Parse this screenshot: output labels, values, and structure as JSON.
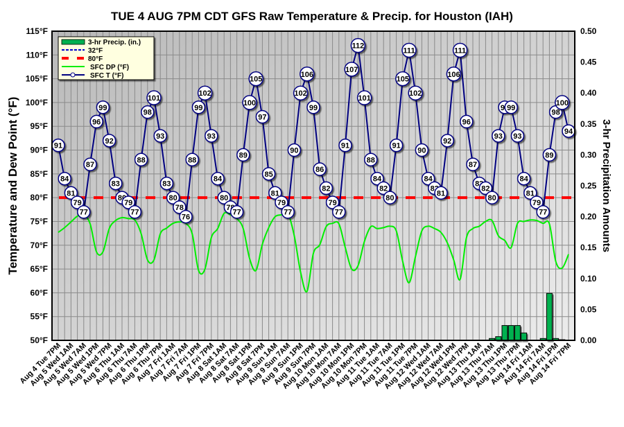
{
  "chart_data": {
    "type": "line",
    "title": "TUE 4 AUG 7PM CDT GFS Raw Temperature & Precip. for Houston (IAH)",
    "ylabel": "Temperature and Dew Point (°F)",
    "y2label": "3-hr Precipitation Amounts",
    "ylim": [
      50,
      115
    ],
    "y2lim": [
      0,
      0.5
    ],
    "yticks": [
      "50°F",
      "55°F",
      "60°F",
      "65°F",
      "70°F",
      "75°F",
      "80°F",
      "85°F",
      "90°F",
      "95°F",
      "100°F",
      "105°F",
      "110°F",
      "115°F"
    ],
    "y2ticks": [
      "0.00",
      "0.05",
      "0.10",
      "0.15",
      "0.20",
      "0.25",
      "0.30",
      "0.35",
      "0.40",
      "0.45",
      "0.50"
    ],
    "grid": true,
    "legend_position": "top-left",
    "legend": [
      "3-hr Precip. (in.)",
      "32°F",
      "80°F",
      "SFC DP (°F)",
      "SFC T (°F)"
    ],
    "x_step_hours": 3,
    "x_labels": [
      "Aug 4 Tue 7PM",
      "Aug 5 Wed 1AM",
      "Aug 5 Wed 7AM",
      "Aug 5 Wed 1PM",
      "Aug 5 Wed 7PM",
      "Aug 6 Thu 1AM",
      "Aug 6 Thu 7AM",
      "Aug 6 Thu 1PM",
      "Aug 6 Thu 7PM",
      "Aug 7 Fri 1AM",
      "Aug 7 Fri 7AM",
      "Aug 7 Fri 1PM",
      "Aug 7 Fri 7PM",
      "Aug 8 Sat 1AM",
      "Aug 8 Sat 7AM",
      "Aug 8 Sat 1PM",
      "Aug 8 Sat 7PM",
      "Aug 9 Sun 1AM",
      "Aug 9 Sun 7AM",
      "Aug 9 Sun 1PM",
      "Aug 9 Sun 7PM",
      "Aug 10 Mon 1AM",
      "Aug 10 Mon 7AM",
      "Aug 10 Mon 1PM",
      "Aug 10 Mon 7PM",
      "Aug 11 Tue 1AM",
      "Aug 11 Tue 7AM",
      "Aug 11 Tue 1PM",
      "Aug 11 Tue 7PM",
      "Aug 12 Wed 1AM",
      "Aug 12 Wed 7AM",
      "Aug 12 Wed 1PM",
      "Aug 12 Wed 7PM",
      "Aug 13 Thu 1AM",
      "Aug 13 Thu 7AM",
      "Aug 13 Thu 1PM",
      "Aug 13 Thu 7PM",
      "Aug 14 Fri 1AM",
      "Aug 14 Fri 7AM",
      "Aug 14 Fri 1PM",
      "Aug 14 Fri 7PM"
    ],
    "reference_lines": [
      {
        "name": "32°F",
        "value": 32,
        "color": "#0000cc"
      },
      {
        "name": "80°F",
        "value": 80,
        "color": "#ff0000"
      }
    ],
    "series": [
      {
        "name": "SFC T (°F)",
        "color": "#000080",
        "values": [
          91,
          84,
          81,
          79,
          77,
          87,
          96,
          99,
          92,
          83,
          80,
          79,
          77,
          88,
          98,
          101,
          93,
          83,
          80,
          78,
          76,
          88,
          99,
          102,
          93,
          84,
          80,
          78,
          77,
          89,
          100,
          105,
          97,
          85,
          81,
          79,
          77,
          90,
          102,
          106,
          99,
          86,
          82,
          79,
          77,
          91,
          107,
          112,
          101,
          88,
          84,
          82,
          80,
          91,
          105,
          111,
          102,
          90,
          84,
          82,
          81,
          92,
          106,
          111,
          96,
          87,
          83,
          82,
          80,
          93,
          99,
          99,
          93,
          84,
          81,
          79,
          77,
          89,
          98,
          100,
          94
        ]
      },
      {
        "name": "SFC DP (°F)",
        "color": "#00ee00",
        "values": [
          72.7,
          73.7,
          74.9,
          76.1,
          76.4,
          74.5,
          68.6,
          68.6,
          73.5,
          75.2,
          75.8,
          75.6,
          75.3,
          72.4,
          66.9,
          66.9,
          72.4,
          73.6,
          74.6,
          74.9,
          74.6,
          72.4,
          64.7,
          65,
          71.6,
          73.5,
          76.7,
          76.4,
          75.6,
          73.5,
          67.2,
          64.7,
          70.2,
          73.7,
          76,
          76.4,
          76.7,
          72,
          64.3,
          60.3,
          68.3,
          70.1,
          73.9,
          74.6,
          74.5,
          69.5,
          65,
          65.7,
          70.8,
          73.9,
          73.5,
          73.7,
          74,
          73,
          66.6,
          62.1,
          67.6,
          73,
          74,
          73.5,
          72.7,
          70.5,
          66.9,
          62.8,
          71.6,
          73.5,
          74,
          75,
          75.2,
          72,
          71,
          69.5,
          74.6,
          75,
          75.3,
          75.2,
          74.6,
          74.5,
          66.6,
          65.2,
          68.1
        ]
      },
      {
        "name": "3-hr Precip. (in.)",
        "color": "#00b050",
        "axis": "right",
        "points": [
          [
            68,
            0.003
          ],
          [
            69,
            0.006
          ],
          [
            70,
            0.024
          ],
          [
            71,
            0.024
          ],
          [
            72,
            0.024
          ],
          [
            73,
            0.012
          ],
          [
            76,
            0.003
          ],
          [
            77,
            0.076
          ],
          [
            78,
            0.003
          ],
          [
            79,
            0.001
          ]
        ]
      }
    ]
  }
}
